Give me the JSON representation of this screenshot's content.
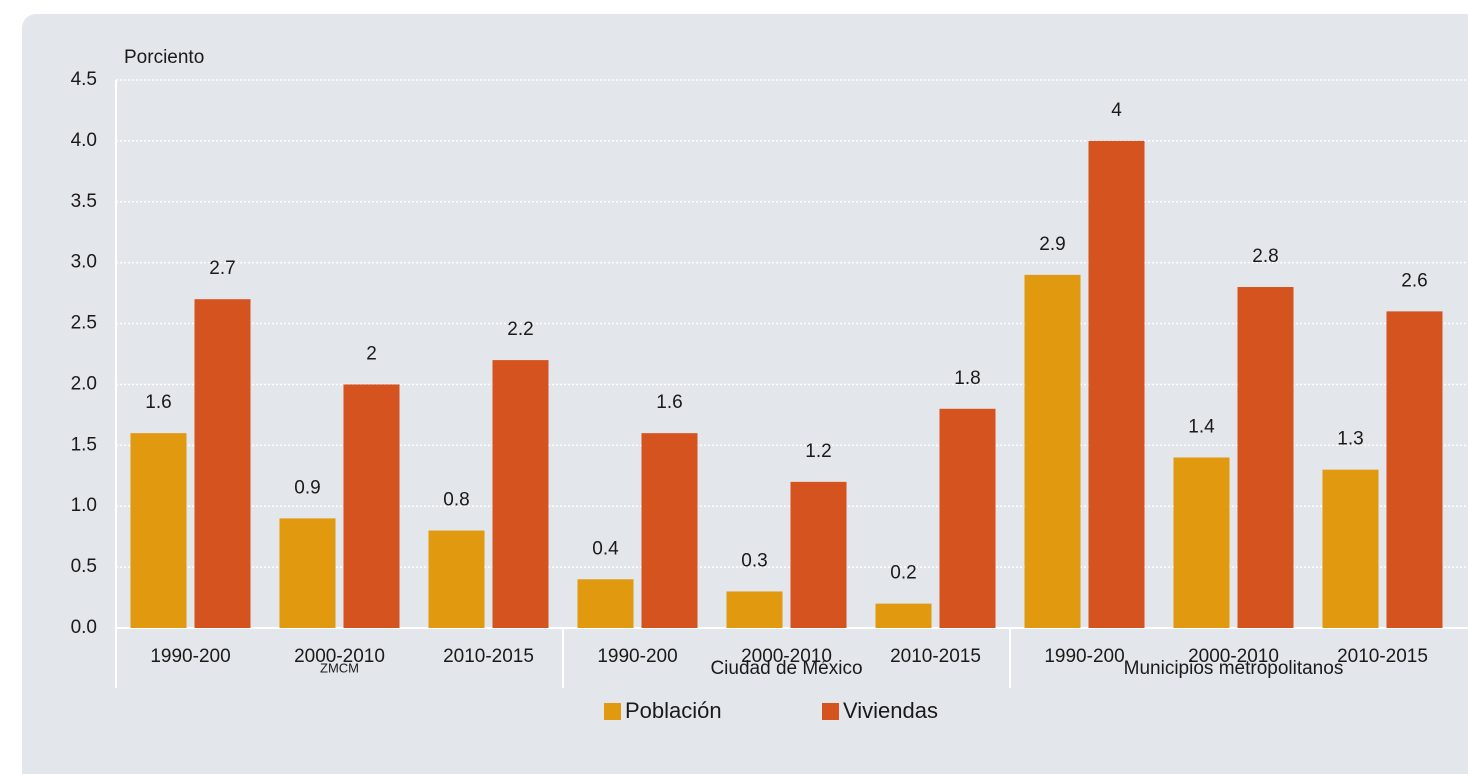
{
  "chart_data": {
    "type": "bar",
    "y_axis_label": "Porciento",
    "categories": [
      "1990-200",
      "2000-2010",
      "2010-2015",
      "1990-200",
      "2000-2010",
      "2010-2015",
      "1990-200",
      "2000-2010",
      "2010-2015"
    ],
    "groups": [
      "ZMCM",
      "Ciudad de México",
      "Municipios metropolitanos"
    ],
    "series": [
      {
        "name": "Población",
        "color": "#e1990f",
        "values": [
          1.6,
          0.9,
          0.8,
          0.4,
          0.3,
          0.2,
          2.9,
          1.4,
          1.3
        ]
      },
      {
        "name": "Viviendas",
        "color": "#d4531f",
        "values": [
          2.7,
          2.0,
          2.2,
          1.6,
          1.2,
          1.8,
          4.0,
          2.8,
          2.6
        ]
      }
    ],
    "ylim": [
      0,
      4.5
    ],
    "yticks": [
      {
        "value": 0,
        "label": "0.0"
      },
      0.5,
      {
        "value": 1,
        "label": "1.0"
      },
      1.5,
      {
        "value": 2,
        "label": "2.0"
      },
      2.5,
      {
        "value": 3,
        "label": "3.0"
      },
      3.5,
      {
        "value": 4,
        "label": "4.0"
      },
      4.5
    ],
    "grid": true,
    "legend": "bottom"
  }
}
